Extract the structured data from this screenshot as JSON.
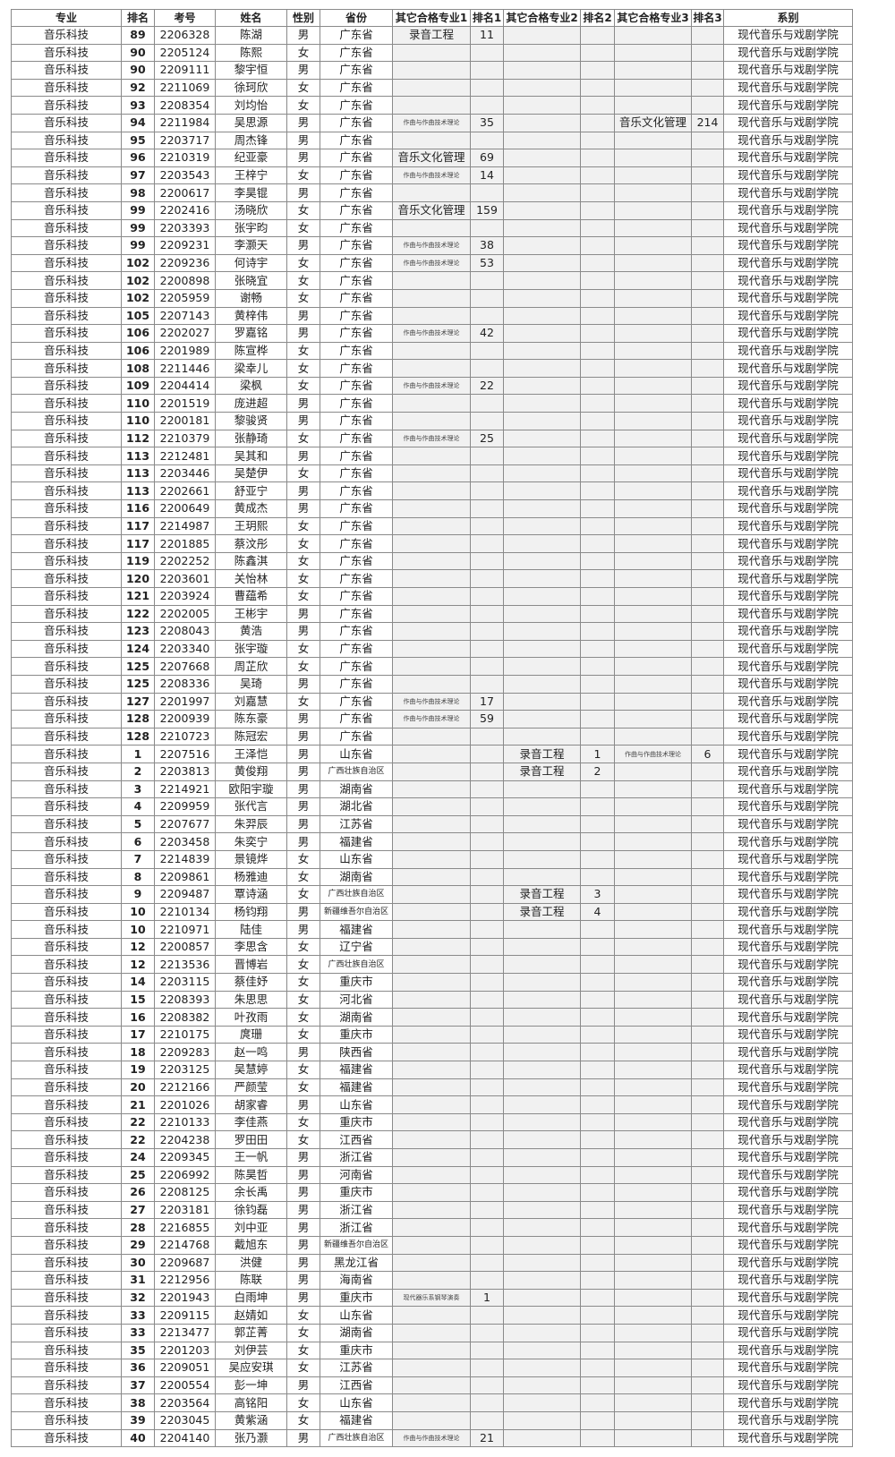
{
  "headers": [
    "专业",
    "排名",
    "考号",
    "姓名",
    "性别",
    "省份",
    "其它合格专业1",
    "排名1",
    "其它合格专业2",
    "排名2",
    "其它合格专业3",
    "排名3",
    "系别"
  ],
  "major": "音乐科技",
  "dept": "现代音乐与戏剧学院",
  "colors": {
    "border": "#8a8a8a",
    "alt_bg": "#f1f1f1"
  },
  "rows": [
    [
      "89",
      "2206328",
      "陈湖",
      "男",
      "广东省",
      "录音工程",
      "11",
      "",
      "",
      "",
      ""
    ],
    [
      "90",
      "2205124",
      "陈熙",
      "女",
      "广东省",
      "",
      "",
      "",
      "",
      "",
      ""
    ],
    [
      "90",
      "2209111",
      "黎宇恒",
      "男",
      "广东省",
      "",
      "",
      "",
      "",
      "",
      ""
    ],
    [
      "92",
      "2211069",
      "徐珂欣",
      "女",
      "广东省",
      "",
      "",
      "",
      "",
      "",
      ""
    ],
    [
      "93",
      "2208354",
      "刘均怡",
      "女",
      "广东省",
      "",
      "",
      "",
      "",
      "",
      ""
    ],
    [
      "94",
      "2211984",
      "吴思源",
      "男",
      "广东省",
      "作曲与作曲技术理论",
      "35",
      "",
      "",
      "音乐文化管理",
      "214"
    ],
    [
      "95",
      "2203717",
      "周杰锋",
      "男",
      "广东省",
      "",
      "",
      "",
      "",
      "",
      ""
    ],
    [
      "96",
      "2210319",
      "纪亚豪",
      "男",
      "广东省",
      "音乐文化管理",
      "69",
      "",
      "",
      "",
      ""
    ],
    [
      "97",
      "2203543",
      "王梓宁",
      "女",
      "广东省",
      "作曲与作曲技术理论",
      "14",
      "",
      "",
      "",
      ""
    ],
    [
      "98",
      "2200617",
      "李昊锟",
      "男",
      "广东省",
      "",
      "",
      "",
      "",
      "",
      ""
    ],
    [
      "99",
      "2202416",
      "汤晓欣",
      "女",
      "广东省",
      "音乐文化管理",
      "159",
      "",
      "",
      "",
      ""
    ],
    [
      "99",
      "2203393",
      "张宇昀",
      "女",
      "广东省",
      "",
      "",
      "",
      "",
      "",
      ""
    ],
    [
      "99",
      "2209231",
      "李灏天",
      "男",
      "广东省",
      "作曲与作曲技术理论",
      "38",
      "",
      "",
      "",
      ""
    ],
    [
      "102",
      "2209236",
      "何诗宇",
      "女",
      "广东省",
      "作曲与作曲技术理论",
      "53",
      "",
      "",
      "",
      ""
    ],
    [
      "102",
      "2200898",
      "张晓宜",
      "女",
      "广东省",
      "",
      "",
      "",
      "",
      "",
      ""
    ],
    [
      "102",
      "2205959",
      "谢畅",
      "女",
      "广东省",
      "",
      "",
      "",
      "",
      "",
      ""
    ],
    [
      "105",
      "2207143",
      "黄梓伟",
      "男",
      "广东省",
      "",
      "",
      "",
      "",
      "",
      ""
    ],
    [
      "106",
      "2202027",
      "罗嘉铭",
      "男",
      "广东省",
      "作曲与作曲技术理论",
      "42",
      "",
      "",
      "",
      ""
    ],
    [
      "106",
      "2201989",
      "陈宣桦",
      "女",
      "广东省",
      "",
      "",
      "",
      "",
      "",
      ""
    ],
    [
      "108",
      "2211446",
      "梁幸儿",
      "女",
      "广东省",
      "",
      "",
      "",
      "",
      "",
      ""
    ],
    [
      "109",
      "2204414",
      "梁枫",
      "女",
      "广东省",
      "作曲与作曲技术理论",
      "22",
      "",
      "",
      "",
      ""
    ],
    [
      "110",
      "2201519",
      "庞进超",
      "男",
      "广东省",
      "",
      "",
      "",
      "",
      "",
      ""
    ],
    [
      "110",
      "2200181",
      "黎骏贤",
      "男",
      "广东省",
      "",
      "",
      "",
      "",
      "",
      ""
    ],
    [
      "112",
      "2210379",
      "张静琦",
      "女",
      "广东省",
      "作曲与作曲技术理论",
      "25",
      "",
      "",
      "",
      ""
    ],
    [
      "113",
      "2212481",
      "吴其和",
      "男",
      "广东省",
      "",
      "",
      "",
      "",
      "",
      ""
    ],
    [
      "113",
      "2203446",
      "吴楚伊",
      "女",
      "广东省",
      "",
      "",
      "",
      "",
      "",
      ""
    ],
    [
      "113",
      "2202661",
      "舒亚宁",
      "男",
      "广东省",
      "",
      "",
      "",
      "",
      "",
      ""
    ],
    [
      "116",
      "2200649",
      "黄成杰",
      "男",
      "广东省",
      "",
      "",
      "",
      "",
      "",
      ""
    ],
    [
      "117",
      "2214987",
      "王玥熙",
      "女",
      "广东省",
      "",
      "",
      "",
      "",
      "",
      ""
    ],
    [
      "117",
      "2201885",
      "蔡汶彤",
      "女",
      "广东省",
      "",
      "",
      "",
      "",
      "",
      ""
    ],
    [
      "119",
      "2202252",
      "陈鑫淇",
      "女",
      "广东省",
      "",
      "",
      "",
      "",
      "",
      ""
    ],
    [
      "120",
      "2203601",
      "关怡林",
      "女",
      "广东省",
      "",
      "",
      "",
      "",
      "",
      ""
    ],
    [
      "121",
      "2203924",
      "曹蕴希",
      "女",
      "广东省",
      "",
      "",
      "",
      "",
      "",
      ""
    ],
    [
      "122",
      "2202005",
      "王彬宇",
      "男",
      "广东省",
      "",
      "",
      "",
      "",
      "",
      ""
    ],
    [
      "123",
      "2208043",
      "黄浩",
      "男",
      "广东省",
      "",
      "",
      "",
      "",
      "",
      ""
    ],
    [
      "124",
      "2203340",
      "张宇璇",
      "女",
      "广东省",
      "",
      "",
      "",
      "",
      "",
      ""
    ],
    [
      "125",
      "2207668",
      "周芷欣",
      "女",
      "广东省",
      "",
      "",
      "",
      "",
      "",
      ""
    ],
    [
      "125",
      "2208336",
      "吴琦",
      "男",
      "广东省",
      "",
      "",
      "",
      "",
      "",
      ""
    ],
    [
      "127",
      "2201997",
      "刘嘉慧",
      "女",
      "广东省",
      "作曲与作曲技术理论",
      "17",
      "",
      "",
      "",
      ""
    ],
    [
      "128",
      "2200939",
      "陈东豪",
      "男",
      "广东省",
      "作曲与作曲技术理论",
      "59",
      "",
      "",
      "",
      ""
    ],
    [
      "128",
      "2210723",
      "陈冠宏",
      "男",
      "广东省",
      "",
      "",
      "",
      "",
      "",
      ""
    ],
    [
      "1",
      "2207516",
      "王泽恺",
      "男",
      "山东省",
      "",
      "",
      "录音工程",
      "1",
      "作曲与作曲技术理论",
      "6"
    ],
    [
      "2",
      "2203813",
      "黄俊翔",
      "男",
      "广西壮族自治区",
      "",
      "",
      "录音工程",
      "2",
      "",
      ""
    ],
    [
      "3",
      "2214921",
      "欧阳宇璇",
      "男",
      "湖南省",
      "",
      "",
      "",
      "",
      "",
      ""
    ],
    [
      "4",
      "2209959",
      "张代言",
      "男",
      "湖北省",
      "",
      "",
      "",
      "",
      "",
      ""
    ],
    [
      "5",
      "2207677",
      "朱羿辰",
      "男",
      "江苏省",
      "",
      "",
      "",
      "",
      "",
      ""
    ],
    [
      "6",
      "2203458",
      "朱奕宁",
      "男",
      "福建省",
      "",
      "",
      "",
      "",
      "",
      ""
    ],
    [
      "7",
      "2214839",
      "景镜烨",
      "女",
      "山东省",
      "",
      "",
      "",
      "",
      "",
      ""
    ],
    [
      "8",
      "2209861",
      "杨雅迪",
      "女",
      "湖南省",
      "",
      "",
      "",
      "",
      "",
      ""
    ],
    [
      "9",
      "2209487",
      "覃诗涵",
      "女",
      "广西壮族自治区",
      "",
      "",
      "录音工程",
      "3",
      "",
      ""
    ],
    [
      "10",
      "2210134",
      "杨钧翔",
      "男",
      "新疆维吾尔自治区",
      "",
      "",
      "录音工程",
      "4",
      "",
      ""
    ],
    [
      "10",
      "2210971",
      "陆佳",
      "男",
      "福建省",
      "",
      "",
      "",
      "",
      "",
      ""
    ],
    [
      "12",
      "2200857",
      "李思含",
      "女",
      "辽宁省",
      "",
      "",
      "",
      "",
      "",
      ""
    ],
    [
      "12",
      "2213536",
      "晋博岩",
      "女",
      "广西壮族自治区",
      "",
      "",
      "",
      "",
      "",
      ""
    ],
    [
      "14",
      "2203115",
      "蔡佳妤",
      "女",
      "重庆市",
      "",
      "",
      "",
      "",
      "",
      ""
    ],
    [
      "15",
      "2208393",
      "朱思思",
      "女",
      "河北省",
      "",
      "",
      "",
      "",
      "",
      ""
    ],
    [
      "16",
      "2208382",
      "叶孜雨",
      "女",
      "湖南省",
      "",
      "",
      "",
      "",
      "",
      ""
    ],
    [
      "17",
      "2210175",
      "庹珊",
      "女",
      "重庆市",
      "",
      "",
      "",
      "",
      "",
      ""
    ],
    [
      "18",
      "2209283",
      "赵一鸣",
      "男",
      "陕西省",
      "",
      "",
      "",
      "",
      "",
      ""
    ],
    [
      "19",
      "2203125",
      "吴慧婷",
      "女",
      "福建省",
      "",
      "",
      "",
      "",
      "",
      ""
    ],
    [
      "20",
      "2212166",
      "严颜莹",
      "女",
      "福建省",
      "",
      "",
      "",
      "",
      "",
      ""
    ],
    [
      "21",
      "2201026",
      "胡家睿",
      "男",
      "山东省",
      "",
      "",
      "",
      "",
      "",
      ""
    ],
    [
      "22",
      "2210133",
      "李佳燕",
      "女",
      "重庆市",
      "",
      "",
      "",
      "",
      "",
      ""
    ],
    [
      "22",
      "2204238",
      "罗田田",
      "女",
      "江西省",
      "",
      "",
      "",
      "",
      "",
      ""
    ],
    [
      "24",
      "2209345",
      "王一帆",
      "男",
      "浙江省",
      "",
      "",
      "",
      "",
      "",
      ""
    ],
    [
      "25",
      "2206992",
      "陈昊哲",
      "男",
      "河南省",
      "",
      "",
      "",
      "",
      "",
      ""
    ],
    [
      "26",
      "2208125",
      "余长禹",
      "男",
      "重庆市",
      "",
      "",
      "",
      "",
      "",
      ""
    ],
    [
      "27",
      "2203181",
      "徐钧磊",
      "男",
      "浙江省",
      "",
      "",
      "",
      "",
      "",
      ""
    ],
    [
      "28",
      "2216855",
      "刘中亚",
      "男",
      "浙江省",
      "",
      "",
      "",
      "",
      "",
      ""
    ],
    [
      "29",
      "2214768",
      "戴旭东",
      "男",
      "新疆维吾尔自治区",
      "",
      "",
      "",
      "",
      "",
      ""
    ],
    [
      "30",
      "2209687",
      "洪健",
      "男",
      "黑龙江省",
      "",
      "",
      "",
      "",
      "",
      ""
    ],
    [
      "31",
      "2212956",
      "陈联",
      "男",
      "海南省",
      "",
      "",
      "",
      "",
      "",
      ""
    ],
    [
      "32",
      "2201943",
      "白雨坤",
      "男",
      "重庆市",
      "现代器乐系钢琴演奏",
      "1",
      "",
      "",
      "",
      ""
    ],
    [
      "33",
      "2209115",
      "赵婧如",
      "女",
      "山东省",
      "",
      "",
      "",
      "",
      "",
      ""
    ],
    [
      "33",
      "2213477",
      "郭芷菁",
      "女",
      "湖南省",
      "",
      "",
      "",
      "",
      "",
      ""
    ],
    [
      "35",
      "2201203",
      "刘伊芸",
      "女",
      "重庆市",
      "",
      "",
      "",
      "",
      "",
      ""
    ],
    [
      "36",
      "2209051",
      "吴应安琪",
      "女",
      "江苏省",
      "",
      "",
      "",
      "",
      "",
      ""
    ],
    [
      "37",
      "2200554",
      "彭一坤",
      "男",
      "江西省",
      "",
      "",
      "",
      "",
      "",
      ""
    ],
    [
      "38",
      "2203564",
      "高铭阳",
      "女",
      "山东省",
      "",
      "",
      "",
      "",
      "",
      ""
    ],
    [
      "39",
      "2203045",
      "黄紫涵",
      "女",
      "福建省",
      "",
      "",
      "",
      "",
      "",
      ""
    ],
    [
      "40",
      "2204140",
      "张乃灏",
      "男",
      "广西壮族自治区",
      "作曲与作曲技术理论",
      "21",
      "",
      "",
      "",
      ""
    ]
  ]
}
